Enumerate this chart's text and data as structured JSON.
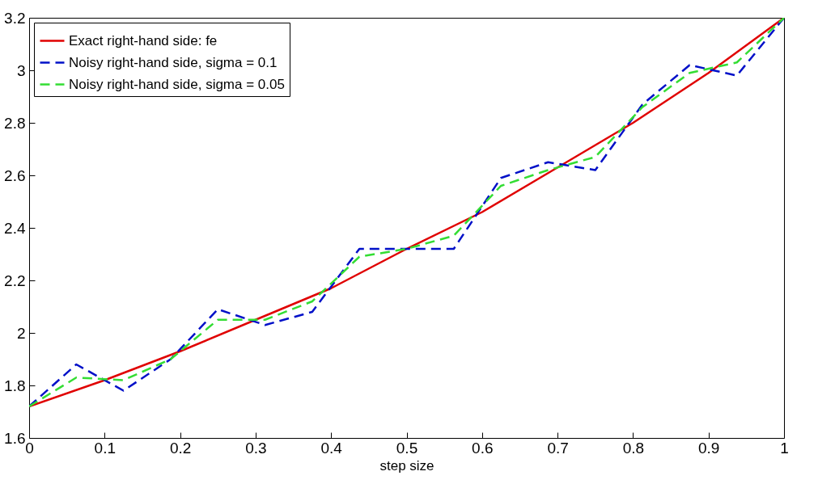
{
  "chart_data": {
    "type": "line",
    "xlabel": "step size",
    "xlim": [
      0,
      1
    ],
    "xticks": [
      0,
      0.1,
      0.2,
      0.3,
      0.4,
      0.5,
      0.6,
      0.7,
      0.8,
      0.9,
      1
    ],
    "ylim": [
      1.6,
      3.2
    ],
    "yticks": [
      1.6,
      1.8,
      2,
      2.2,
      2.4,
      2.6,
      2.8,
      3,
      3.2
    ],
    "grid": false,
    "legend": "top left",
    "marker": "none",
    "series": [
      {
        "name": "Exact right-hand side: fe",
        "color": "#e00000",
        "line_style": "solid",
        "x": [
          0,
          0.1,
          0.2,
          0.3,
          0.4,
          0.5,
          0.6,
          0.7,
          0.8,
          0.9,
          1
        ],
        "values": [
          1.72,
          1.82,
          1.93,
          2.05,
          2.17,
          2.32,
          2.46,
          2.63,
          2.8,
          2.99,
          3.2
        ]
      },
      {
        "name": "Noisy right-hand side, sigma = 0.1",
        "color": "#0010c8",
        "line_style": "dashed",
        "x": [
          0,
          0.0625,
          0.125,
          0.1875,
          0.25,
          0.3125,
          0.375,
          0.4375,
          0.5,
          0.5625,
          0.625,
          0.6875,
          0.75,
          0.8125,
          0.875,
          0.9375,
          1
        ],
        "values": [
          1.72,
          1.88,
          1.78,
          1.9,
          2.09,
          2.03,
          2.08,
          2.32,
          2.32,
          2.32,
          2.59,
          2.65,
          2.62,
          2.87,
          3.02,
          2.98,
          3.2
        ]
      },
      {
        "name": "Noisy right-hand side, sigma = 0.05",
        "color": "#33dd33",
        "line_style": "dashed",
        "x": [
          0,
          0.0625,
          0.125,
          0.1875,
          0.25,
          0.3125,
          0.375,
          0.4375,
          0.5,
          0.5625,
          0.625,
          0.6875,
          0.75,
          0.8125,
          0.875,
          0.9375,
          1
        ],
        "values": [
          1.72,
          1.83,
          1.82,
          1.9,
          2.05,
          2.05,
          2.12,
          2.29,
          2.32,
          2.37,
          2.56,
          2.62,
          2.67,
          2.86,
          2.99,
          3.03,
          3.2
        ]
      }
    ]
  }
}
